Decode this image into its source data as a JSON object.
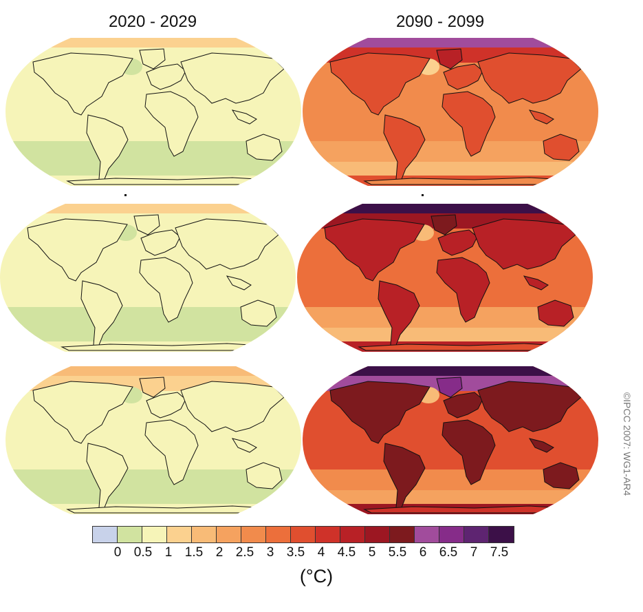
{
  "columns": [
    {
      "title": "2020 - 2029"
    },
    {
      "title": "2090 - 2099"
    }
  ],
  "panels": [
    {
      "row": 0,
      "col": 0,
      "warming": 0.6
    },
    {
      "row": 0,
      "col": 1,
      "warming": 2.9
    },
    {
      "row": 1,
      "col": 0,
      "warming": 0.6
    },
    {
      "row": 1,
      "col": 1,
      "warming": 3.5
    },
    {
      "row": 2,
      "col": 0,
      "warming": 0.7
    },
    {
      "row": 2,
      "col": 1,
      "warming": 4.2
    }
  ],
  "legend": {
    "unit": "(°C)",
    "tick_labels": [
      "0",
      "0.5",
      "1",
      "1.5",
      "2",
      "2.5",
      "3",
      "3.5",
      "4",
      "4.5",
      "5",
      "5.5",
      "6",
      "6.5",
      "7",
      "7.5"
    ],
    "colors": [
      "#c8d2ea",
      "#d1e3a0",
      "#f6f4b8",
      "#fbd18f",
      "#f8bb77",
      "#f5a25f",
      "#f18b4c",
      "#ec6f3b",
      "#e04f2f",
      "#cf3229",
      "#b82126",
      "#9c1722",
      "#7d1a1e",
      "#a14c9c",
      "#862c89",
      "#5e2471",
      "#3c1048"
    ]
  },
  "copyright": "©IPCC  2007: WG1-AR4"
}
